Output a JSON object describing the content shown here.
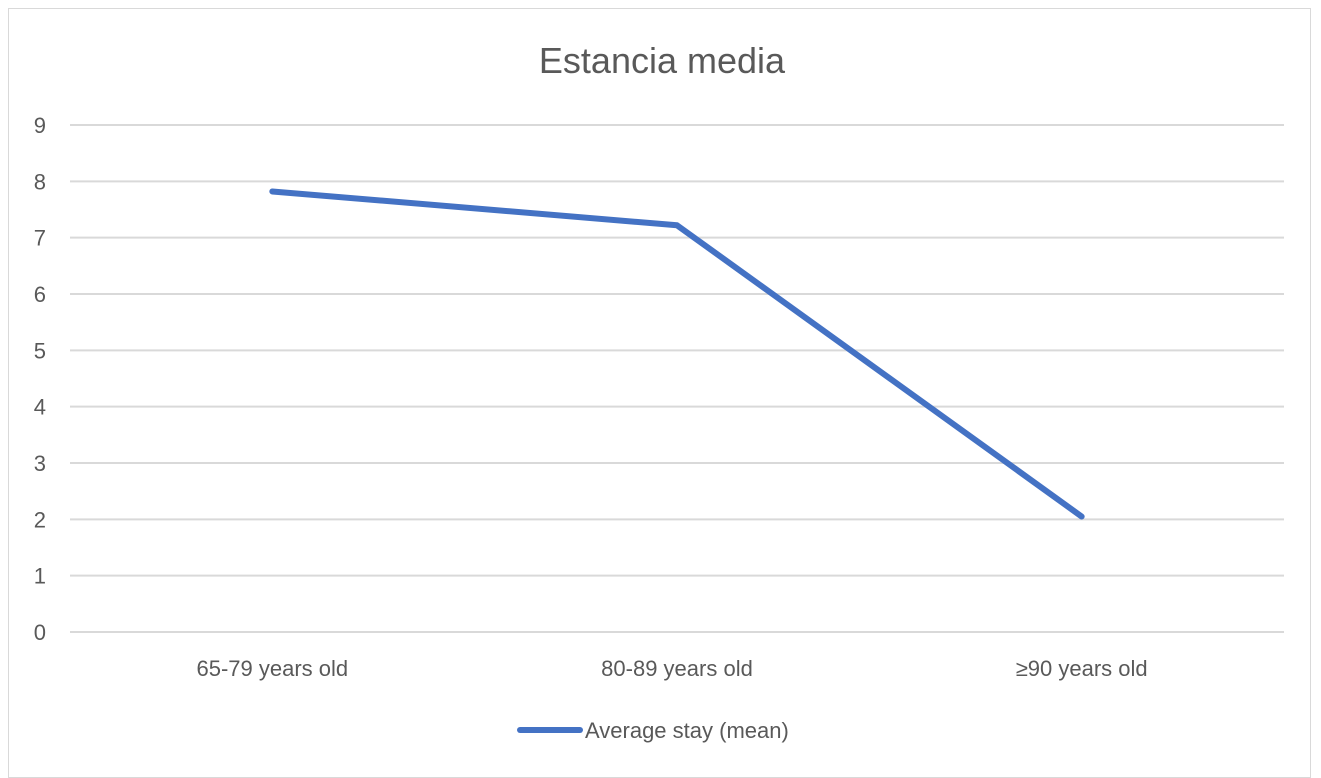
{
  "chart_data": {
    "type": "line",
    "title": "Estancia media",
    "xlabel": "",
    "ylabel": "",
    "categories": [
      "65-79 years old",
      "80-89 years old",
      "≥90 years old"
    ],
    "series": [
      {
        "name": "Average stay (mean)",
        "values": [
          7.82,
          7.22,
          2.05
        ],
        "color": "#4472c4"
      }
    ],
    "ylim": [
      0,
      9
    ],
    "yticks": [
      "0",
      "1",
      "2",
      "3",
      "4",
      "5",
      "6",
      "7",
      "8",
      "9"
    ],
    "grid": true,
    "legend_position": "bottom",
    "gridline_color": "#d9d9d9"
  }
}
